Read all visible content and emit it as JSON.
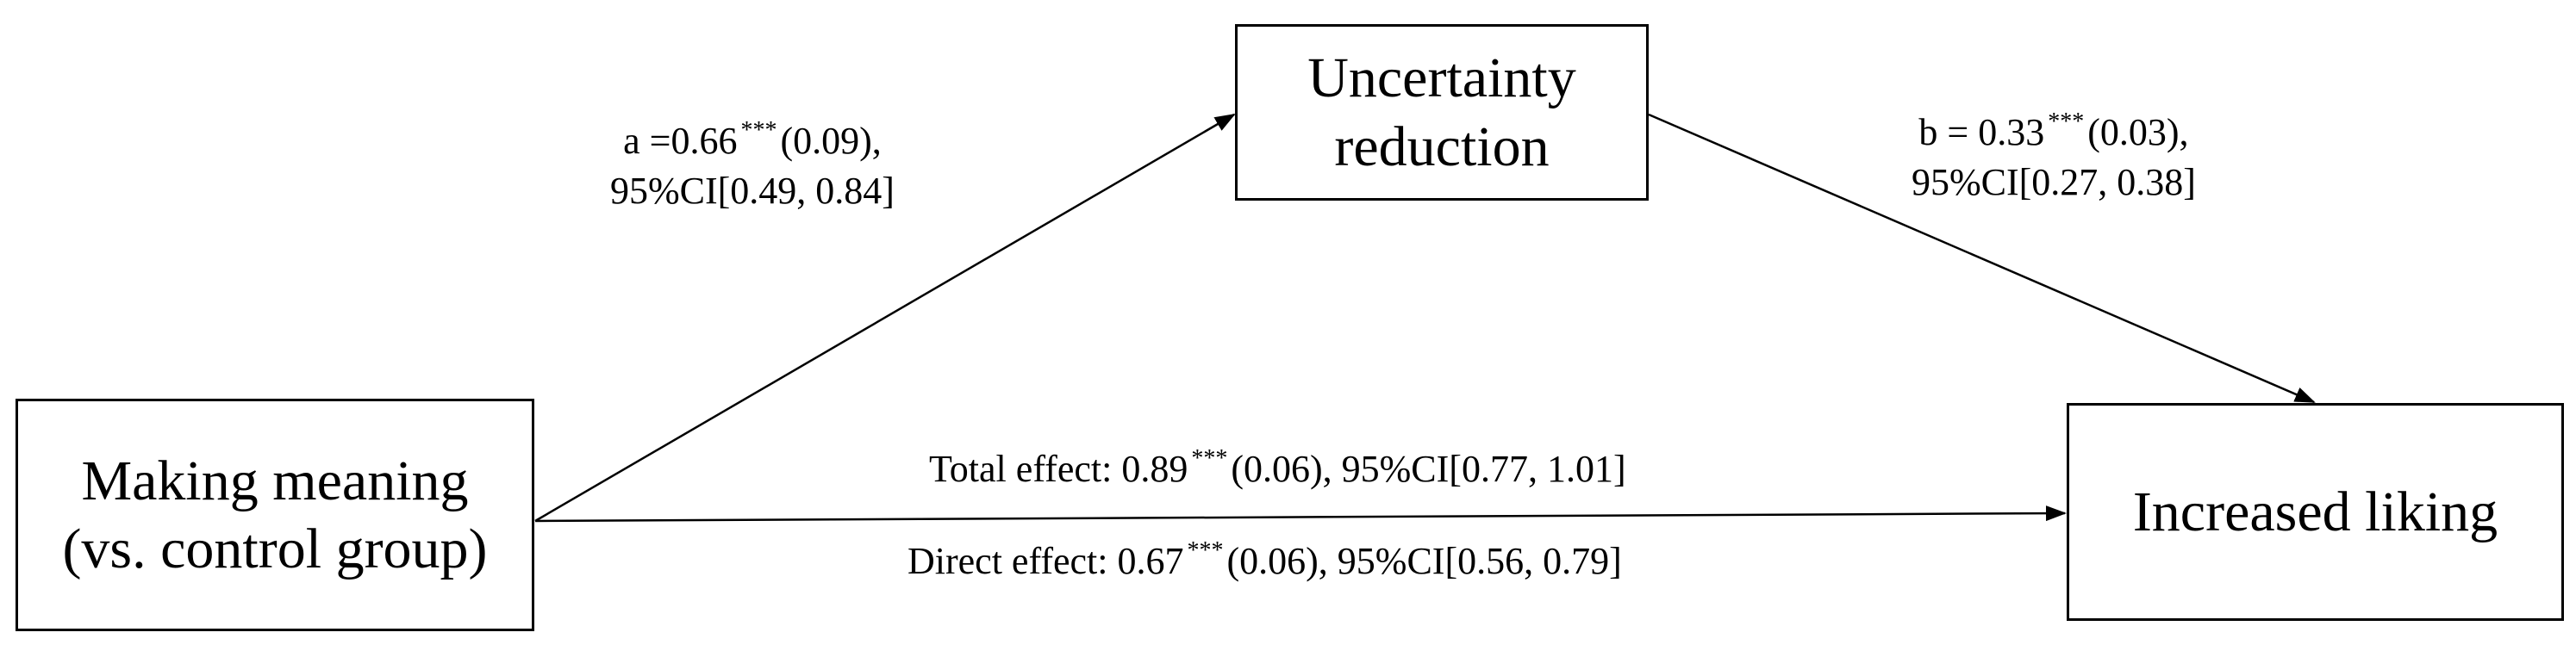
{
  "nodes": {
    "mediator": {
      "line1": "Uncertainty",
      "line2": "reduction"
    },
    "predictor": {
      "line1": "Making meaning",
      "line2": "(vs. control group)"
    },
    "outcome": {
      "line1": "Increased liking"
    }
  },
  "paths": {
    "a": {
      "prefix": "a =0.66",
      "stars": "***",
      "se": "(0.09),",
      "ci": "95%CI[0.49, 0.84]"
    },
    "b": {
      "prefix": "b = 0.33",
      "stars": "***",
      "se": "(0.03),",
      "ci": "95%CI[0.27, 0.38]"
    },
    "total": {
      "prefix": "Total effect: 0.89",
      "stars": "***",
      "rest": "(0.06), 95%CI[0.77, 1.01]"
    },
    "direct": {
      "prefix": "Direct effect: 0.67",
      "stars": "***",
      "rest": "(0.06), 95%CI[0.56, 0.79]"
    }
  },
  "colors": {
    "line": "#000000",
    "text": "#000000",
    "background": "#ffffff"
  }
}
